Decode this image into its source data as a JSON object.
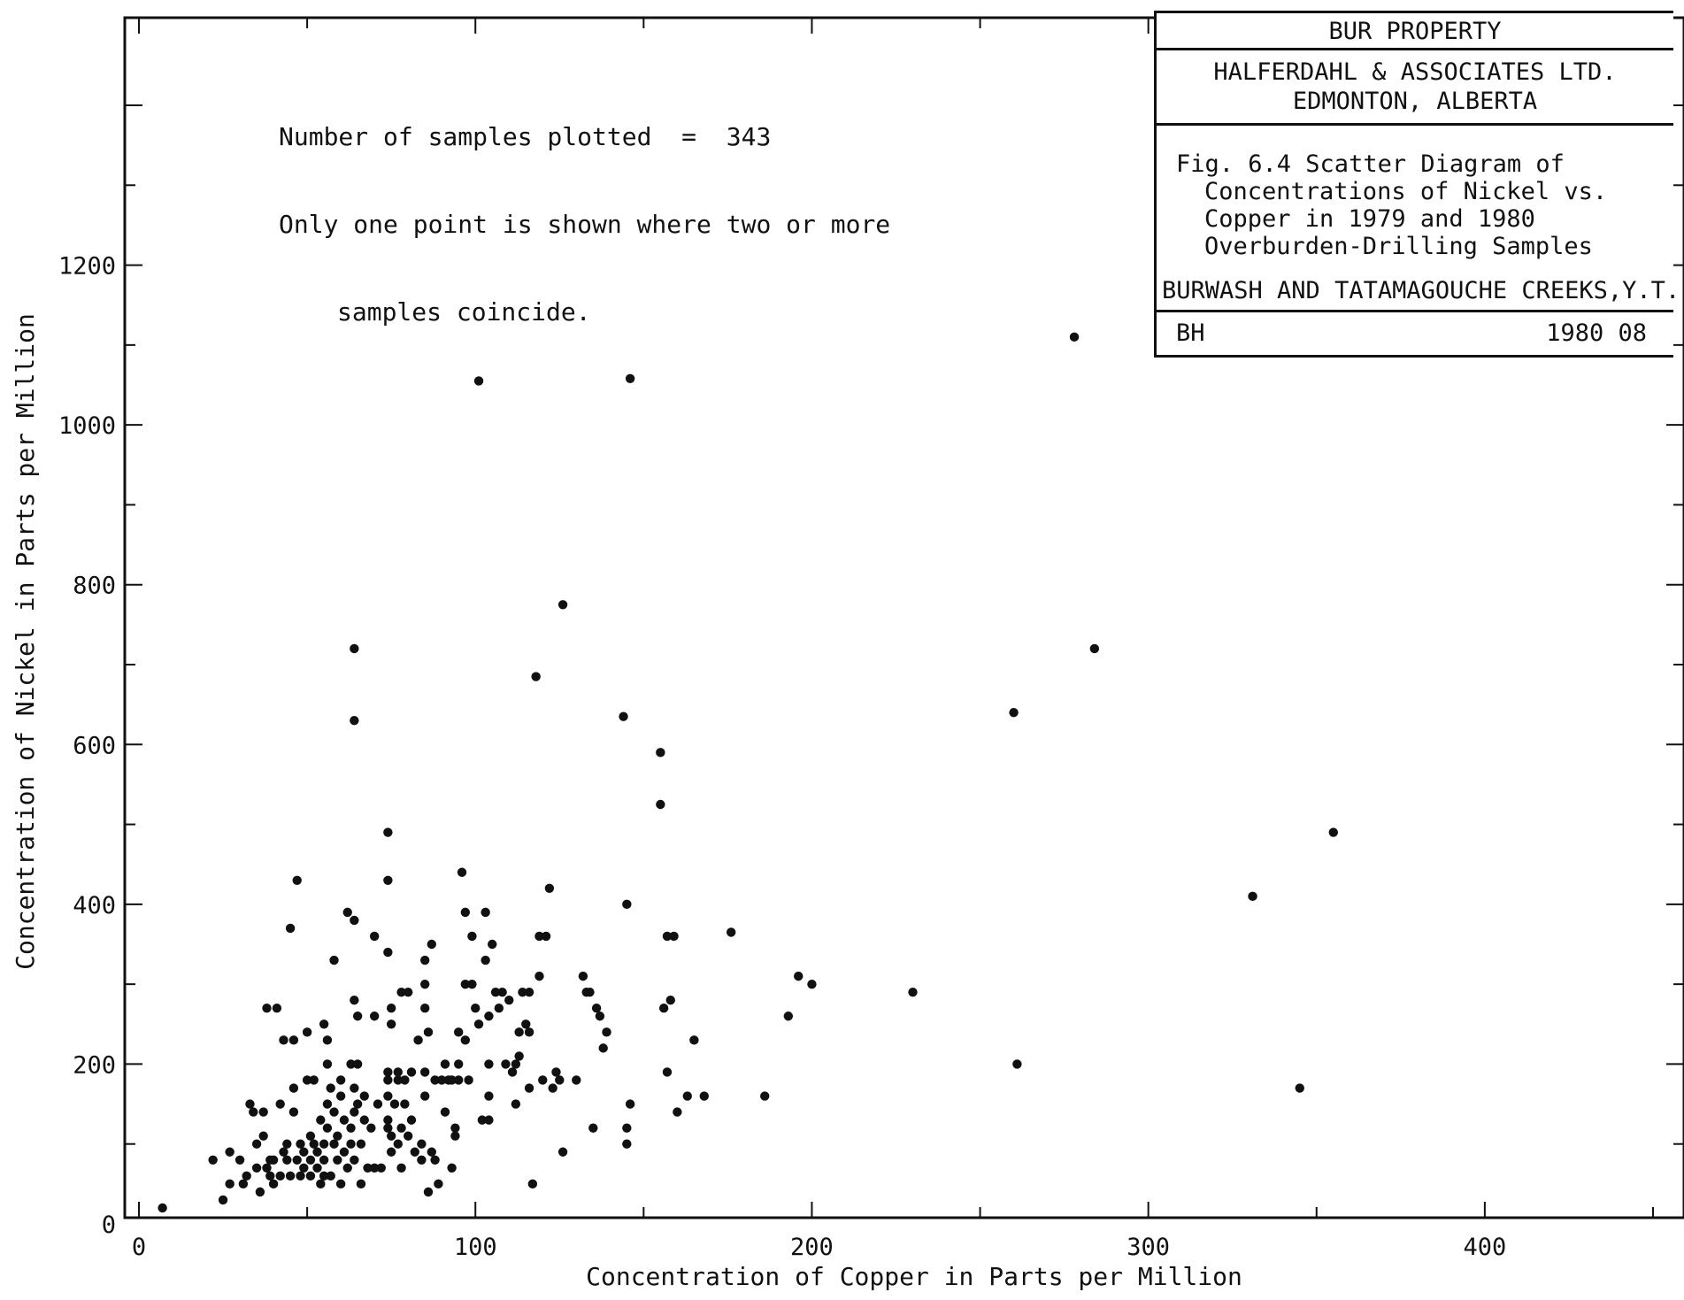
{
  "note": {
    "line1": "Number of samples plotted  =  343",
    "line2": "Only one point is shown where two or more",
    "line3": "samples coincide."
  },
  "title_block": {
    "property": "BUR PROPERTY",
    "company_line1": "HALFERDAHL & ASSOCIATES LTD.",
    "company_line2": "EDMONTON, ALBERTA",
    "figure_line1": "Fig. 6.4 Scatter Diagram of",
    "figure_line2": "Concentrations of Nickel vs.",
    "figure_line3": "Copper in 1979 and 1980",
    "figure_line4": "Overburden-Drilling Samples",
    "location": "BURWASH AND TATAMAGOUCHE CREEKS,Y.T.",
    "initials": "BH",
    "date": "1980 08"
  },
  "chart_data": {
    "type": "scatter",
    "xlabel": "Concentration of Copper in Parts per Million",
    "ylabel": "Concentration of Nickel in Parts per Million",
    "xlim": [
      0,
      450
    ],
    "ylim": [
      0,
      1400
    ],
    "x_tick_labels": [
      "0",
      "100",
      "200",
      "300",
      "400"
    ],
    "x_tick_values": [
      0,
      100,
      200,
      300,
      400
    ],
    "y_tick_labels": [
      "0",
      "200",
      "400",
      "600",
      "800",
      "1000",
      "1200"
    ],
    "y_tick_values": [
      0,
      200,
      400,
      600,
      800,
      1000,
      1200
    ],
    "grid": false,
    "point_color": "#111111",
    "points": [
      [
        7,
        20
      ],
      [
        22,
        80
      ],
      [
        25,
        30
      ],
      [
        27,
        50
      ],
      [
        27,
        90
      ],
      [
        30,
        80
      ],
      [
        31,
        50
      ],
      [
        32,
        60
      ],
      [
        33,
        150
      ],
      [
        34,
        140
      ],
      [
        35,
        100
      ],
      [
        35,
        70
      ],
      [
        36,
        40
      ],
      [
        37,
        110
      ],
      [
        37,
        140
      ],
      [
        38,
        270
      ],
      [
        38,
        70
      ],
      [
        39,
        60
      ],
      [
        39,
        80
      ],
      [
        40,
        50
      ],
      [
        40,
        80
      ],
      [
        41,
        270
      ],
      [
        42,
        60
      ],
      [
        42,
        150
      ],
      [
        43,
        230
      ],
      [
        43,
        90
      ],
      [
        44,
        80
      ],
      [
        44,
        100
      ],
      [
        45,
        60
      ],
      [
        45,
        370
      ],
      [
        46,
        230
      ],
      [
        46,
        170
      ],
      [
        46,
        140
      ],
      [
        47,
        430
      ],
      [
        47,
        80
      ],
      [
        48,
        60
      ],
      [
        48,
        100
      ],
      [
        49,
        90
      ],
      [
        49,
        70
      ],
      [
        50,
        180
      ],
      [
        50,
        240
      ],
      [
        51,
        110
      ],
      [
        51,
        80
      ],
      [
        51,
        60
      ],
      [
        52,
        180
      ],
      [
        52,
        100
      ],
      [
        53,
        90
      ],
      [
        53,
        70
      ],
      [
        54,
        50
      ],
      [
        54,
        130
      ],
      [
        55,
        250
      ],
      [
        55,
        100
      ],
      [
        55,
        80
      ],
      [
        55,
        60
      ],
      [
        56,
        230
      ],
      [
        56,
        200
      ],
      [
        56,
        150
      ],
      [
        56,
        120
      ],
      [
        57,
        170
      ],
      [
        57,
        60
      ],
      [
        58,
        100
      ],
      [
        58,
        330
      ],
      [
        58,
        140
      ],
      [
        59,
        110
      ],
      [
        59,
        80
      ],
      [
        60,
        180
      ],
      [
        60,
        160
      ],
      [
        60,
        50
      ],
      [
        61,
        130
      ],
      [
        61,
        90
      ],
      [
        62,
        70
      ],
      [
        62,
        390
      ],
      [
        63,
        200
      ],
      [
        63,
        120
      ],
      [
        63,
        100
      ],
      [
        64,
        720
      ],
      [
        64,
        630
      ],
      [
        64,
        380
      ],
      [
        64,
        280
      ],
      [
        64,
        170
      ],
      [
        64,
        140
      ],
      [
        64,
        80
      ],
      [
        65,
        260
      ],
      [
        65,
        200
      ],
      [
        65,
        150
      ],
      [
        66,
        100
      ],
      [
        66,
        50
      ],
      [
        67,
        160
      ],
      [
        67,
        130
      ],
      [
        68,
        70
      ],
      [
        69,
        120
      ],
      [
        70,
        360
      ],
      [
        70,
        260
      ],
      [
        70,
        70
      ],
      [
        71,
        150
      ],
      [
        72,
        70
      ],
      [
        74,
        490
      ],
      [
        74,
        430
      ],
      [
        74,
        340
      ],
      [
        74,
        190
      ],
      [
        74,
        180
      ],
      [
        74,
        160
      ],
      [
        74,
        130
      ],
      [
        74,
        120
      ],
      [
        75,
        270
      ],
      [
        75,
        250
      ],
      [
        75,
        110
      ],
      [
        75,
        90
      ],
      [
        76,
        150
      ],
      [
        77,
        190
      ],
      [
        77,
        180
      ],
      [
        77,
        100
      ],
      [
        78,
        290
      ],
      [
        78,
        120
      ],
      [
        78,
        70
      ],
      [
        79,
        180
      ],
      [
        79,
        150
      ],
      [
        80,
        290
      ],
      [
        80,
        110
      ],
      [
        81,
        190
      ],
      [
        81,
        130
      ],
      [
        82,
        90
      ],
      [
        83,
        230
      ],
      [
        84,
        100
      ],
      [
        84,
        80
      ],
      [
        85,
        330
      ],
      [
        85,
        300
      ],
      [
        85,
        270
      ],
      [
        85,
        190
      ],
      [
        85,
        160
      ],
      [
        86,
        240
      ],
      [
        86,
        40
      ],
      [
        87,
        350
      ],
      [
        87,
        90
      ],
      [
        88,
        180
      ],
      [
        88,
        80
      ],
      [
        89,
        50
      ],
      [
        90,
        180
      ],
      [
        91,
        200
      ],
      [
        91,
        140
      ],
      [
        92,
        180
      ],
      [
        93,
        180
      ],
      [
        93,
        70
      ],
      [
        94,
        110
      ],
      [
        94,
        120
      ],
      [
        95,
        240
      ],
      [
        95,
        200
      ],
      [
        95,
        180
      ],
      [
        96,
        440
      ],
      [
        97,
        390
      ],
      [
        97,
        300
      ],
      [
        97,
        230
      ],
      [
        98,
        180
      ],
      [
        99,
        300
      ],
      [
        99,
        360
      ],
      [
        100,
        270
      ],
      [
        101,
        1055
      ],
      [
        101,
        250
      ],
      [
        102,
        130
      ],
      [
        103,
        390
      ],
      [
        103,
        330
      ],
      [
        104,
        260
      ],
      [
        104,
        200
      ],
      [
        104,
        160
      ],
      [
        104,
        130
      ],
      [
        105,
        350
      ],
      [
        106,
        290
      ],
      [
        107,
        270
      ],
      [
        108,
        290
      ],
      [
        109,
        200
      ],
      [
        110,
        280
      ],
      [
        111,
        190
      ],
      [
        112,
        200
      ],
      [
        112,
        150
      ],
      [
        113,
        240
      ],
      [
        113,
        210
      ],
      [
        114,
        290
      ],
      [
        115,
        250
      ],
      [
        116,
        240
      ],
      [
        116,
        290
      ],
      [
        116,
        170
      ],
      [
        117,
        50
      ],
      [
        118,
        685
      ],
      [
        119,
        310
      ],
      [
        119,
        360
      ],
      [
        120,
        180
      ],
      [
        121,
        360
      ],
      [
        122,
        420
      ],
      [
        123,
        170
      ],
      [
        124,
        190
      ],
      [
        125,
        180
      ],
      [
        126,
        90
      ],
      [
        126,
        775
      ],
      [
        130,
        180
      ],
      [
        132,
        310
      ],
      [
        133,
        290
      ],
      [
        134,
        290
      ],
      [
        135,
        120
      ],
      [
        136,
        270
      ],
      [
        137,
        260
      ],
      [
        138,
        220
      ],
      [
        139,
        240
      ],
      [
        144,
        635
      ],
      [
        145,
        400
      ],
      [
        145,
        100
      ],
      [
        145,
        120
      ],
      [
        146,
        1058
      ],
      [
        146,
        150
      ],
      [
        155,
        590
      ],
      [
        155,
        525
      ],
      [
        156,
        270
      ],
      [
        157,
        360
      ],
      [
        157,
        190
      ],
      [
        158,
        280
      ],
      [
        159,
        360
      ],
      [
        160,
        140
      ],
      [
        163,
        160
      ],
      [
        165,
        230
      ],
      [
        168,
        160
      ],
      [
        176,
        365
      ],
      [
        186,
        160
      ],
      [
        193,
        260
      ],
      [
        196,
        310
      ],
      [
        200,
        300
      ],
      [
        230,
        290
      ],
      [
        260,
        640
      ],
      [
        261,
        200
      ],
      [
        278,
        1110
      ],
      [
        284,
        720
      ],
      [
        331,
        410
      ],
      [
        345,
        170
      ],
      [
        355,
        490
      ]
    ]
  }
}
